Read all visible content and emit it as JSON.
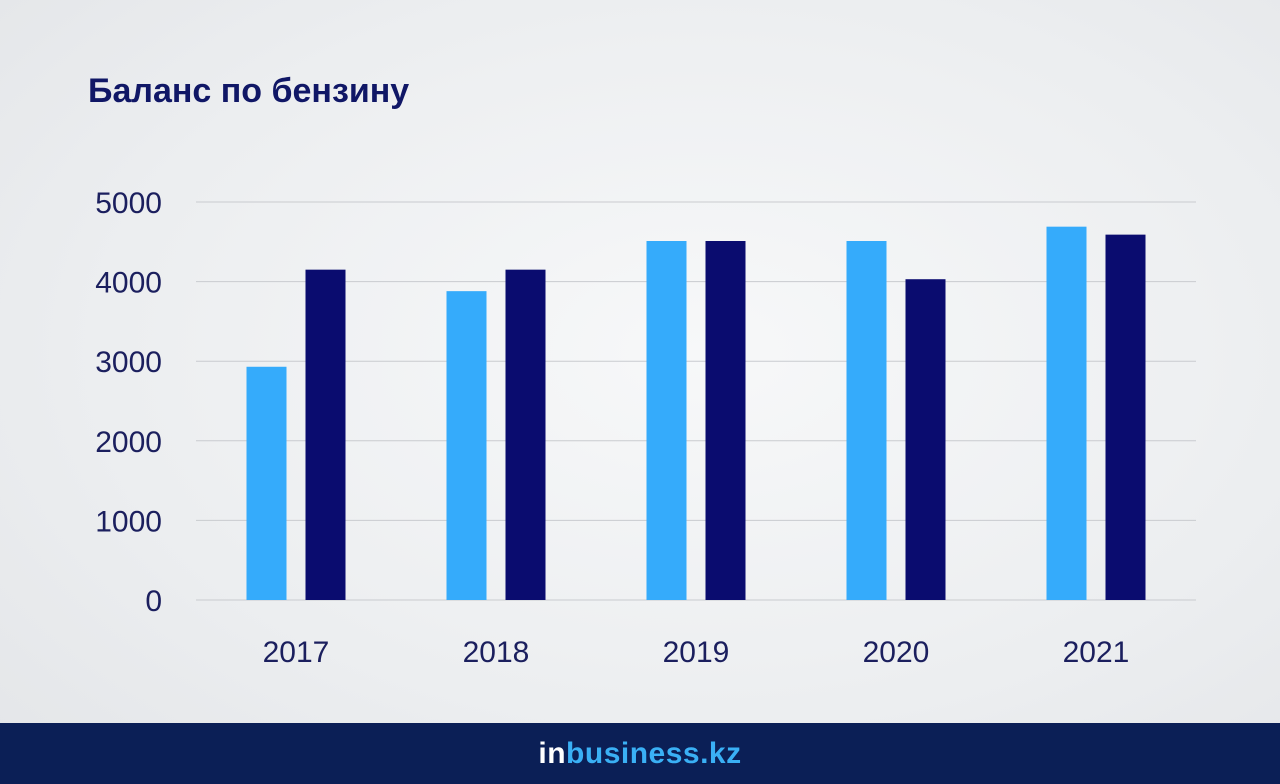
{
  "chart_data": {
    "type": "bar",
    "title": "Баланс по бензину",
    "categories": [
      "2017",
      "2018",
      "2019",
      "2020",
      "2021"
    ],
    "series": [
      {
        "name": "Series 1",
        "color": "#35abfb",
        "values": [
          2930,
          3880,
          4510,
          4510,
          4690
        ]
      },
      {
        "name": "Series 2",
        "color": "#0a0c6f",
        "values": [
          4150,
          4150,
          4510,
          4030,
          4590
        ]
      }
    ],
    "yticks": [
      "0",
      "1000",
      "2000",
      "3000",
      "4000",
      "5000"
    ],
    "ylim": [
      0,
      5000
    ],
    "xlabel": "",
    "ylabel": "",
    "grid": true
  },
  "footer": {
    "logo_part1": "in",
    "logo_part2": "business.kz"
  }
}
